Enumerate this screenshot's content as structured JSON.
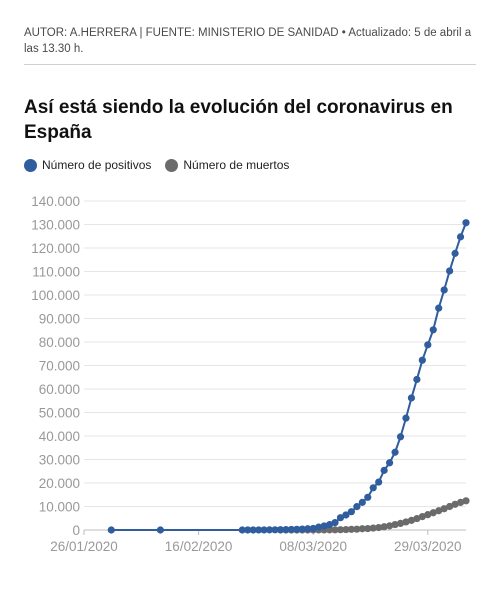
{
  "byline": "AUTOR: A.HERRERA | FUENTE: MINISTERIO DE SANIDAD • Actualizado: 5 de abril a las 13.30 h.",
  "colors": {
    "positivos": "#2f5d9e",
    "muertos": "#6b6b6b",
    "grid": "#e6e6e6",
    "axis_text": "#999999"
  },
  "chart_data": {
    "type": "line",
    "title": "Así está siendo la evolución del coronavirus en España",
    "xlabel": "",
    "ylabel": "",
    "ylim": [
      0,
      140000
    ],
    "xlim": [
      "2020-01-26",
      "2020-04-05"
    ],
    "grid": true,
    "legend_position": "top-left",
    "y_ticks": [
      0,
      10000,
      20000,
      30000,
      40000,
      50000,
      60000,
      70000,
      80000,
      90000,
      100000,
      110000,
      120000,
      130000,
      140000
    ],
    "y_tick_labels": [
      "0",
      "10.000",
      "20.000",
      "30.000",
      "40.000",
      "50.000",
      "60.000",
      "70.000",
      "80.000",
      "90.000",
      "100.000",
      "110.000",
      "120.000",
      "130.000",
      "140.000"
    ],
    "x_ticks": [
      "2020-01-26",
      "2020-02-16",
      "2020-03-08",
      "2020-03-29"
    ],
    "x_tick_labels": [
      "26/01/2020",
      "16/02/2020",
      "08/03/2020",
      "29/03/2020"
    ],
    "series": [
      {
        "name": "Número de positivos",
        "color": "#2f5d9e",
        "x": [
          "2020-01-31",
          "2020-02-09",
          "2020-02-24",
          "2020-02-25",
          "2020-02-26",
          "2020-02-27",
          "2020-02-28",
          "2020-02-29",
          "2020-03-01",
          "2020-03-02",
          "2020-03-03",
          "2020-03-04",
          "2020-03-05",
          "2020-03-06",
          "2020-03-07",
          "2020-03-08",
          "2020-03-09",
          "2020-03-10",
          "2020-03-11",
          "2020-03-12",
          "2020-03-13",
          "2020-03-14",
          "2020-03-15",
          "2020-03-16",
          "2020-03-17",
          "2020-03-18",
          "2020-03-19",
          "2020-03-20",
          "2020-03-21",
          "2020-03-22",
          "2020-03-23",
          "2020-03-24",
          "2020-03-25",
          "2020-03-26",
          "2020-03-27",
          "2020-03-28",
          "2020-03-29",
          "2020-03-30",
          "2020-03-31",
          "2020-04-01",
          "2020-04-02",
          "2020-04-03",
          "2020-04-04",
          "2020-04-05"
        ],
        "values": [
          1,
          2,
          3,
          7,
          12,
          25,
          32,
          45,
          84,
          120,
          165,
          228,
          282,
          401,
          525,
          674,
          1231,
          1695,
          2277,
          3146,
          5232,
          6391,
          7798,
          9942,
          11748,
          13910,
          17963,
          20410,
          25374,
          28603,
          33089,
          39673,
          47610,
          56188,
          64059,
          72248,
          78797,
          85195,
          94417,
          102136,
          110238,
          117710,
          124736,
          130759
        ]
      },
      {
        "name": "Número de muertos",
        "color": "#6b6b6b",
        "x": [
          "2020-03-02",
          "2020-03-03",
          "2020-03-04",
          "2020-03-05",
          "2020-03-06",
          "2020-03-07",
          "2020-03-08",
          "2020-03-09",
          "2020-03-10",
          "2020-03-11",
          "2020-03-12",
          "2020-03-13",
          "2020-03-14",
          "2020-03-15",
          "2020-03-16",
          "2020-03-17",
          "2020-03-18",
          "2020-03-19",
          "2020-03-20",
          "2020-03-21",
          "2020-03-22",
          "2020-03-23",
          "2020-03-24",
          "2020-03-25",
          "2020-03-26",
          "2020-03-27",
          "2020-03-28",
          "2020-03-29",
          "2020-03-30",
          "2020-03-31",
          "2020-04-01",
          "2020-04-02",
          "2020-04-03",
          "2020-04-04",
          "2020-04-05"
        ],
        "values": [
          0,
          1,
          2,
          3,
          5,
          10,
          17,
          30,
          36,
          55,
          86,
          133,
          195,
          289,
          342,
          533,
          623,
          830,
          1043,
          1375,
          1772,
          2311,
          2808,
          3434,
          4089,
          4858,
          5690,
          6528,
          7340,
          8189,
          9053,
          10003,
          10935,
          11744,
          12418
        ]
      }
    ]
  }
}
